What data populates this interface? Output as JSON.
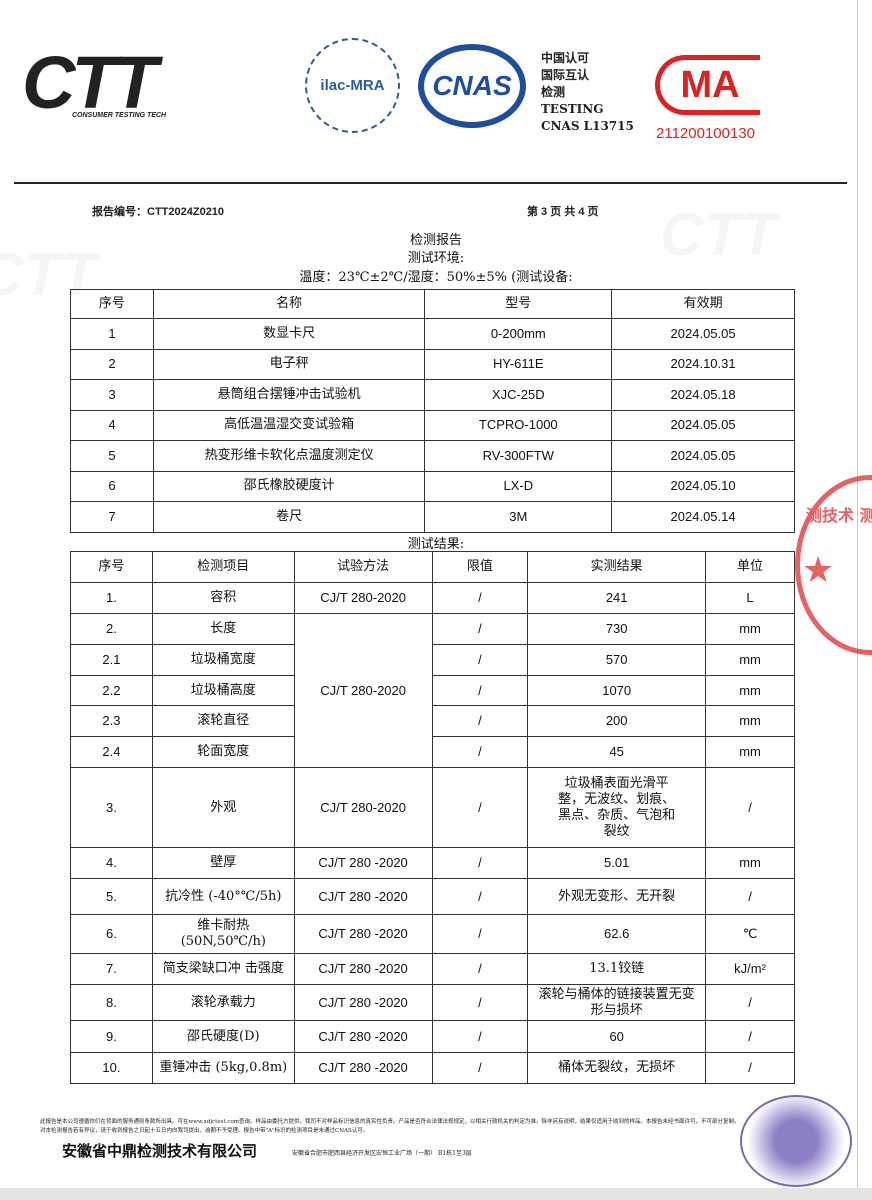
{
  "header": {
    "logo": "CTT",
    "logo_sub": "CONSUMER TESTING TECH",
    "ilac": "ilac-MRA",
    "cnas": "CNAS",
    "cnas_text": [
      "中国认可",
      "国际互认",
      "检测",
      "TESTING",
      "CNAS L13715"
    ],
    "cma": "MA",
    "cma_number": "211200100130",
    "report_no": "报告编号：CTT2024Z0210",
    "page": "第 3 页 共 4 页"
  },
  "title": "检测报告",
  "env_label": "测试环境:",
  "env": "温度：23℃±2℃/湿度：50%±5% (测试设备:",
  "equipment": {
    "headers": [
      "序号",
      "名称",
      "型号",
      "有效期"
    ],
    "rows": [
      [
        "1",
        "数显卡尺",
        "0-200mm",
        "2024.05.05"
      ],
      [
        "2",
        "电子秤",
        "HY-611E",
        "2024.10.31"
      ],
      [
        "3",
        "悬筒组合摆锤冲击试验机",
        "XJC-25D",
        "2024.05.18"
      ],
      [
        "4",
        "高低温温湿交变试验箱",
        "TCPRO-1000",
        "2024.05.05"
      ],
      [
        "5",
        "热变形维卡软化点温度测定仪",
        "RV-300FTW",
        "2024.05.05"
      ],
      [
        "6",
        "邵氏橡胶硬度计",
        "LX-D",
        "2024.05.10"
      ],
      [
        "7",
        "卷尺",
        "3M",
        "2024.05.14"
      ]
    ]
  },
  "results_label": "测试结果:",
  "results": {
    "headers": [
      "序号",
      "检测项目",
      "试验方法",
      "限值",
      "实测结果",
      "单位"
    ],
    "rows": [
      {
        "no": "1.",
        "item": "容积",
        "method": "CJ/T 280-2020",
        "limit": "/",
        "result": "241",
        "unit": "L"
      },
      {
        "no": "2.",
        "item": "长度",
        "method": "CJ/T 280-2020",
        "limit": "/",
        "result": "730",
        "unit": "mm"
      },
      {
        "no": "2.1",
        "item": "垃圾桶宽度",
        "limit": "/",
        "result": "570",
        "unit": "mm"
      },
      {
        "no": "2.2",
        "item": "垃圾桶高度",
        "limit": "/",
        "result": "1070",
        "unit": "mm"
      },
      {
        "no": "2.3",
        "item": "滚轮直径",
        "limit": "/",
        "result": "200",
        "unit": "mm"
      },
      {
        "no": "2.4",
        "item": "轮面宽度",
        "limit": "/",
        "result": "45",
        "unit": "mm"
      },
      {
        "no": "3.",
        "item": "外观",
        "method": "CJ/T 280-2020",
        "limit": "/",
        "result": "垃圾桶表面光滑平整，无波纹、划痕、黑点、杂质、气泡和裂纹",
        "unit": "/"
      },
      {
        "no": "4.",
        "item": "壁厚",
        "method": "CJ/T 280 -2020",
        "limit": "/",
        "result": "5.01",
        "unit": "mm"
      },
      {
        "no": "5.",
        "item": "抗冷性 (-40°℃/5h)",
        "method": "CJ/T 280 -2020",
        "limit": "/",
        "result": "外观无变形、无开裂",
        "unit": "/"
      },
      {
        "no": "6.",
        "item": "维卡耐热 (50N,50℃/h)",
        "method": "CJ/T 280 -2020",
        "limit": "/",
        "result": "62.6",
        "unit": "℃"
      },
      {
        "no": "7.",
        "item": "简支梁缺口冲 击强度",
        "method": "CJ/T 280 -2020",
        "limit": "/",
        "result": "13.1铰链",
        "unit": "kJ/m²"
      },
      {
        "no": "8.",
        "item": "滚轮承载力",
        "method": "CJ/T 280 -2020",
        "limit": "/",
        "result": "滚轮与桶体的链接装置无变形与损坏",
        "unit": "/"
      },
      {
        "no": "9.",
        "item": "邵氏硬度(D)",
        "method": "CJ/T 280 -2020",
        "limit": "/",
        "result": "60",
        "unit": "/"
      },
      {
        "no": "10.",
        "item": "重锤冲击 (5kg,0.8m)",
        "method": "CJ/T 280 -2020",
        "limit": "/",
        "result": "桶体无裂纹，无损坏",
        "unit": "/"
      }
    ]
  },
  "footer": {
    "fine_print": "此报告是本公司遵循你们在背面的服务通则条款所出具。可在www.xdjctest.com查询。样品由委托方提供，我司不对样品标识信息的真实性负责。产品是否符合法律法规规定，以相关行政机关的判定为准。除非另有说明，结果仅适用于收到的样品。本报告未经书面许可，不可部分复制。对本检测报告若有异议，请于收到报告之日起十五日内向我司提出，逾期不予受理。报告中带\"A\"标识的检测项目是未通过CNAS认可。",
    "company": "安徽省中鼎检测技术有限公司",
    "address": "安徽省合肥市肥西县经济开发区宏恒工业广场（一期） B1栋1至3层"
  },
  "seal_text": "测技术 测专用"
}
